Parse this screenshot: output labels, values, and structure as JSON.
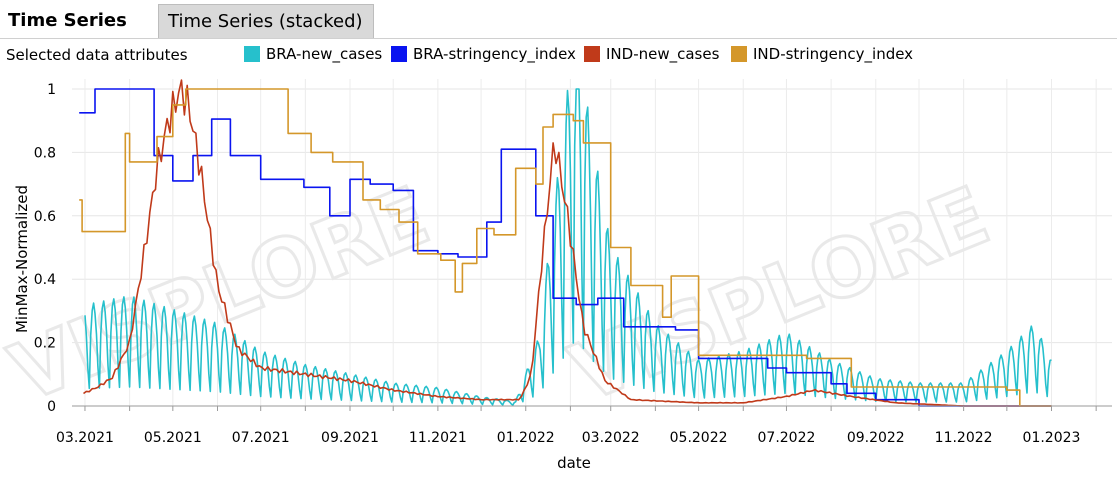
{
  "tabs": [
    {
      "label": "Time Series",
      "active": true
    },
    {
      "label": "Time Series (stacked)",
      "active": false
    }
  ],
  "selected_label": "Selected data attributes",
  "chart_data": {
    "type": "line",
    "xlabel": "date",
    "ylabel": "MinMax-Normalized",
    "xlim": [
      "2021-02-20",
      "2023-02-12"
    ],
    "ylim": [
      0,
      1
    ],
    "grid": true,
    "legend_position": "top",
    "x_ticks": [
      {
        "date": "2021-03-01",
        "label": "03.2021"
      },
      {
        "date": "2021-05-01",
        "label": "05.2021"
      },
      {
        "date": "2021-07-01",
        "label": "07.2021"
      },
      {
        "date": "2021-09-01",
        "label": "09.2021"
      },
      {
        "date": "2021-11-01",
        "label": "11.2021"
      },
      {
        "date": "2022-01-01",
        "label": "01.2022"
      },
      {
        "date": "2022-03-01",
        "label": "03.2022"
      },
      {
        "date": "2022-05-01",
        "label": "05.2022"
      },
      {
        "date": "2022-07-01",
        "label": "07.2022"
      },
      {
        "date": "2022-09-01",
        "label": "09.2022"
      },
      {
        "date": "2022-11-01",
        "label": "11.2022"
      },
      {
        "date": "2023-01-01",
        "label": "01.2023"
      }
    ],
    "y_ticks": [
      {
        "value": 0,
        "label": "0"
      },
      {
        "value": 0.2,
        "label": "0.2"
      },
      {
        "value": 0.4,
        "label": "0.4"
      },
      {
        "value": 0.6,
        "label": "0.6"
      },
      {
        "value": 0.8,
        "label": "0.8"
      },
      {
        "value": 1,
        "label": "1"
      }
    ],
    "watermark": "VISPLORE",
    "series": [
      {
        "name": "BRA-new_cases",
        "color": "#26c0cc",
        "style": "oscillating",
        "points": [
          [
            "2021-03-01",
            0.22
          ],
          [
            "2021-04-01",
            0.24
          ],
          [
            "2021-05-01",
            0.21
          ],
          [
            "2021-06-01",
            0.18
          ],
          [
            "2021-07-01",
            0.12
          ],
          [
            "2021-08-01",
            0.09
          ],
          [
            "2021-09-01",
            0.07
          ],
          [
            "2021-10-01",
            0.05
          ],
          [
            "2021-11-01",
            0.04
          ],
          [
            "2021-12-01",
            0.02
          ],
          [
            "2021-12-25",
            0.01
          ],
          [
            "2022-01-10",
            0.15
          ],
          [
            "2022-01-25",
            0.55
          ],
          [
            "2022-02-05",
            0.85
          ],
          [
            "2022-02-15",
            0.6
          ],
          [
            "2022-03-01",
            0.35
          ],
          [
            "2022-04-01",
            0.18
          ],
          [
            "2022-05-01",
            0.1
          ],
          [
            "2022-06-01",
            0.12
          ],
          [
            "2022-07-01",
            0.16
          ],
          [
            "2022-08-01",
            0.1
          ],
          [
            "2022-09-01",
            0.06
          ],
          [
            "2022-10-01",
            0.05
          ],
          [
            "2022-11-01",
            0.05
          ],
          [
            "2022-12-01",
            0.12
          ],
          [
            "2022-12-20",
            0.18
          ],
          [
            "2023-01-01",
            0.1
          ]
        ]
      },
      {
        "name": "BRA-stringency_index",
        "color": "#0a14f0",
        "style": "step",
        "points": [
          [
            "2021-02-25",
            0.925
          ],
          [
            "2021-03-08",
            1.0
          ],
          [
            "2021-04-18",
            0.79
          ],
          [
            "2021-05-01",
            0.71
          ],
          [
            "2021-05-15",
            0.79
          ],
          [
            "2021-05-28",
            0.905
          ],
          [
            "2021-06-10",
            0.79
          ],
          [
            "2021-07-01",
            0.715
          ],
          [
            "2021-07-31",
            0.69
          ],
          [
            "2021-08-18",
            0.6
          ],
          [
            "2021-09-01",
            0.715
          ],
          [
            "2021-09-15",
            0.7
          ],
          [
            "2021-10-01",
            0.68
          ],
          [
            "2021-10-15",
            0.49
          ],
          [
            "2021-11-01",
            0.48
          ],
          [
            "2021-11-15",
            0.47
          ],
          [
            "2021-12-05",
            0.58
          ],
          [
            "2021-12-15",
            0.81
          ],
          [
            "2022-01-08",
            0.6
          ],
          [
            "2022-01-20",
            0.34
          ],
          [
            "2022-02-05",
            0.32
          ],
          [
            "2022-02-20",
            0.34
          ],
          [
            "2022-03-10",
            0.25
          ],
          [
            "2022-04-15",
            0.24
          ],
          [
            "2022-05-01",
            0.15
          ],
          [
            "2022-06-18",
            0.12
          ],
          [
            "2022-07-01",
            0.105
          ],
          [
            "2022-08-01",
            0.07
          ],
          [
            "2022-08-12",
            0.04
          ],
          [
            "2022-09-01",
            0.02
          ],
          [
            "2022-10-01",
            0.0
          ],
          [
            "2023-01-01",
            0.0
          ]
        ]
      },
      {
        "name": "IND-new_cases",
        "color": "#c03a1a",
        "style": "smooth",
        "points": [
          [
            "2021-02-28",
            0.04
          ],
          [
            "2021-03-10",
            0.06
          ],
          [
            "2021-03-20",
            0.09
          ],
          [
            "2021-04-01",
            0.2
          ],
          [
            "2021-04-10",
            0.45
          ],
          [
            "2021-04-20",
            0.75
          ],
          [
            "2021-04-28",
            0.9
          ],
          [
            "2021-05-06",
            1.0
          ],
          [
            "2021-05-12",
            0.95
          ],
          [
            "2021-05-20",
            0.75
          ],
          [
            "2021-06-01",
            0.38
          ],
          [
            "2021-06-15",
            0.18
          ],
          [
            "2021-07-01",
            0.12
          ],
          [
            "2021-08-01",
            0.1
          ],
          [
            "2021-09-01",
            0.08
          ],
          [
            "2021-10-01",
            0.05
          ],
          [
            "2021-11-01",
            0.03
          ],
          [
            "2021-12-01",
            0.02
          ],
          [
            "2021-12-28",
            0.02
          ],
          [
            "2022-01-05",
            0.1
          ],
          [
            "2022-01-12",
            0.45
          ],
          [
            "2022-01-21",
            0.84
          ],
          [
            "2022-01-30",
            0.6
          ],
          [
            "2022-02-10",
            0.25
          ],
          [
            "2022-02-25",
            0.08
          ],
          [
            "2022-03-15",
            0.02
          ],
          [
            "2022-05-01",
            0.01
          ],
          [
            "2022-06-01",
            0.01
          ],
          [
            "2022-07-01",
            0.03
          ],
          [
            "2022-07-20",
            0.05
          ],
          [
            "2022-08-15",
            0.03
          ],
          [
            "2022-09-15",
            0.01
          ],
          [
            "2022-11-01",
            0.0
          ],
          [
            "2023-01-01",
            0.0
          ]
        ]
      },
      {
        "name": "IND-stringency_index",
        "color": "#d4972a",
        "style": "step",
        "points": [
          [
            "2021-02-25",
            0.65
          ],
          [
            "2021-02-27",
            0.55
          ],
          [
            "2021-03-29",
            0.86
          ],
          [
            "2021-04-01",
            0.77
          ],
          [
            "2021-04-20",
            0.85
          ],
          [
            "2021-05-01",
            0.95
          ],
          [
            "2021-05-10",
            1.0
          ],
          [
            "2021-07-01",
            1.0
          ],
          [
            "2021-07-20",
            0.86
          ],
          [
            "2021-08-05",
            0.8
          ],
          [
            "2021-08-20",
            0.77
          ],
          [
            "2021-09-10",
            0.65
          ],
          [
            "2021-09-22",
            0.62
          ],
          [
            "2021-10-05",
            0.58
          ],
          [
            "2021-10-18",
            0.48
          ],
          [
            "2021-11-03",
            0.46
          ],
          [
            "2021-11-13",
            0.36
          ],
          [
            "2021-11-18",
            0.45
          ],
          [
            "2021-11-28",
            0.56
          ],
          [
            "2021-12-10",
            0.54
          ],
          [
            "2021-12-25",
            0.75
          ],
          [
            "2022-01-08",
            0.7
          ],
          [
            "2022-01-13",
            0.88
          ],
          [
            "2022-01-20",
            0.92
          ],
          [
            "2022-02-03",
            0.9
          ],
          [
            "2022-02-10",
            0.83
          ],
          [
            "2022-03-01",
            0.5
          ],
          [
            "2022-03-15",
            0.38
          ],
          [
            "2022-04-06",
            0.28
          ],
          [
            "2022-04-12",
            0.41
          ],
          [
            "2022-05-01",
            0.16
          ],
          [
            "2022-05-15",
            0.16
          ],
          [
            "2022-07-15",
            0.15
          ],
          [
            "2022-08-15",
            0.06
          ],
          [
            "2022-12-01",
            0.05
          ],
          [
            "2022-12-10",
            0.0
          ],
          [
            "2023-01-01",
            0.0
          ]
        ]
      }
    ]
  }
}
